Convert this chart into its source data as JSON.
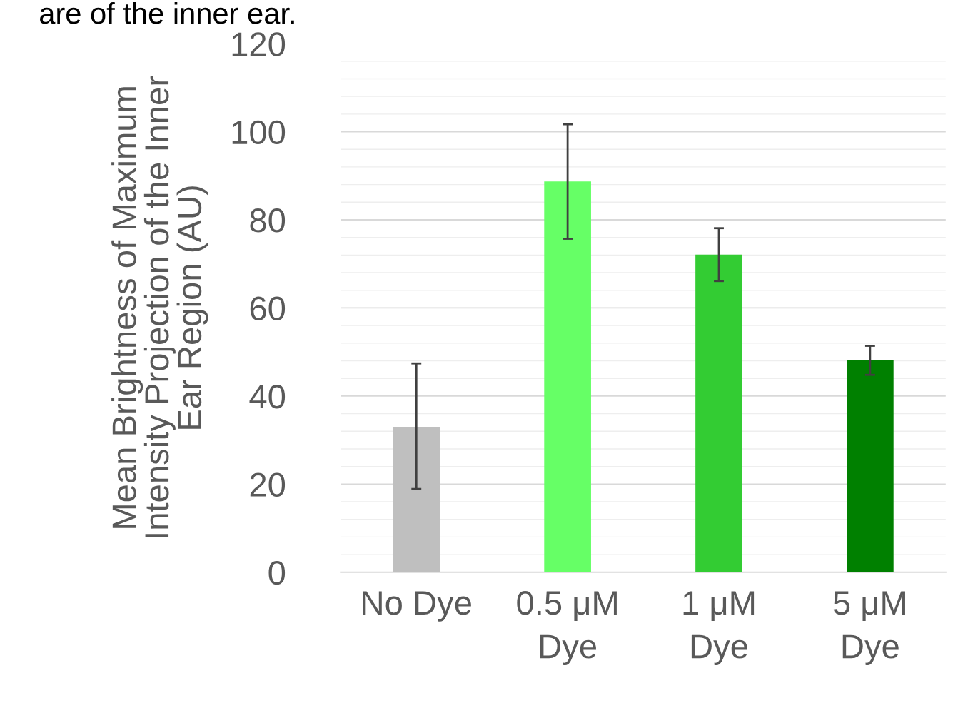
{
  "chart_data": {
    "type": "bar",
    "title": "are of the inner ear.",
    "ylabel": "Mean Brightness of Maximum\nIntensity Projection of the Inner\nEar Region (AU)",
    "categories": [
      "No Dye",
      "0.5 μM\nDye",
      "1 μM\nDye",
      "5 μM\nDye"
    ],
    "values": [
      33,
      88.7,
      72.1,
      48.1
    ],
    "colors": [
      "#bfbfbf",
      "#66ff66",
      "#33cc33",
      "#008000"
    ],
    "errors": [
      [
        18.9,
        47.4
      ],
      13,
      6,
      3.3
    ],
    "ylim": [
      0,
      120
    ],
    "yticks": [
      0,
      20,
      40,
      60,
      80,
      100,
      120
    ],
    "grid": true
  }
}
